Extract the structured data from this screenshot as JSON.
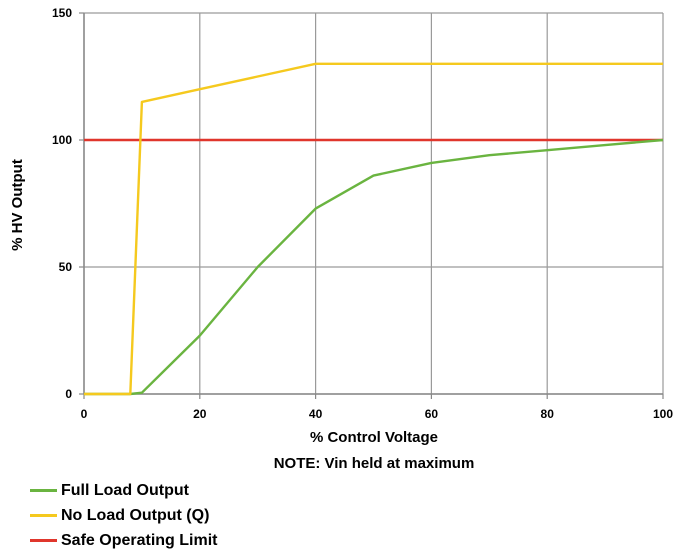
{
  "chart_data": {
    "type": "line",
    "title": "",
    "xlabel": "% Control Voltage",
    "note": "NOTE: Vin held at maximum",
    "ylabel": "% HV Output",
    "xlim": [
      0,
      100
    ],
    "ylim": [
      0,
      150
    ],
    "xticks": [
      0,
      20,
      40,
      60,
      80,
      100
    ],
    "yticks": [
      0,
      50,
      100,
      150
    ],
    "grid": true,
    "legend_position": "bottom-left",
    "series": [
      {
        "name": "Full Load Output",
        "color": "#6ab440",
        "x": [
          0,
          8,
          10,
          20,
          30,
          40,
          50,
          60,
          70,
          80,
          90,
          100
        ],
        "y": [
          0,
          0,
          0.5,
          23,
          50,
          73,
          86,
          91,
          94,
          96,
          98,
          100
        ]
      },
      {
        "name": "No Load Output (Q)",
        "color": "#f5c91e",
        "x": [
          0,
          8,
          10,
          20,
          30,
          40,
          50,
          60,
          70,
          80,
          90,
          100
        ],
        "y": [
          0,
          0,
          115,
          120,
          125,
          130,
          130,
          130,
          130,
          130,
          130,
          130
        ]
      },
      {
        "name": "Safe Operating Limit",
        "color": "#e0362c",
        "x": [
          0,
          100
        ],
        "y": [
          100,
          100
        ]
      }
    ]
  }
}
